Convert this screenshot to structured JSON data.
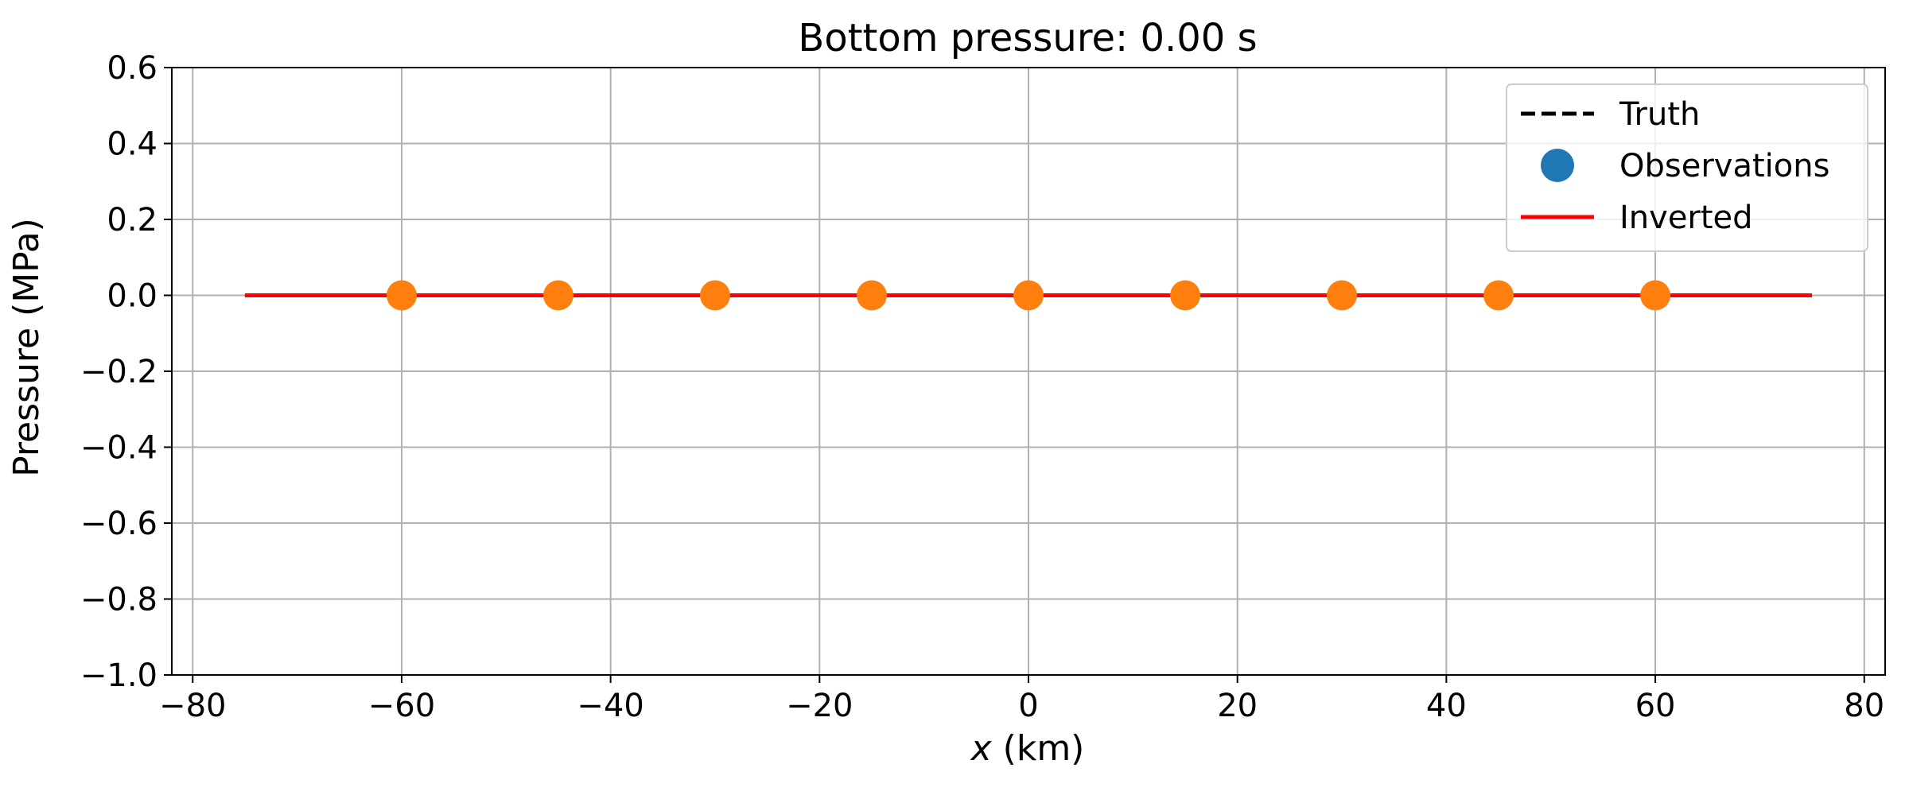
{
  "chart_data": {
    "type": "line",
    "title": "Bottom pressure:  0.00 s",
    "xlabel_var": "x",
    "xlabel_unit": " (km)",
    "ylabel": "Pressure (MPa)",
    "xlim": [
      -82,
      82
    ],
    "ylim": [
      -1.0,
      0.6
    ],
    "xticks": [
      -80,
      -60,
      -40,
      -20,
      0,
      20,
      40,
      60,
      80
    ],
    "yticks": [
      -1.0,
      -0.8,
      -0.6,
      -0.4,
      -0.2,
      0.0,
      0.2,
      0.4,
      0.6
    ],
    "grid": true,
    "legend_position": "top-right",
    "series": [
      {
        "name": "Truth",
        "kind": "line",
        "style": "dashed",
        "color": "#000000",
        "x": [
          -75,
          75
        ],
        "y": [
          0.0,
          0.0
        ]
      },
      {
        "name": "Observations",
        "kind": "scatter",
        "color": "#1f77b4",
        "x": [],
        "y": []
      },
      {
        "name": "Inverted",
        "kind": "line",
        "style": "solid",
        "color": "#ff0000",
        "x": [
          -75,
          75
        ],
        "y": [
          0.0,
          0.0
        ]
      },
      {
        "name": "",
        "kind": "scatter",
        "color": "#ff7f0e",
        "x": [
          -60,
          -45,
          -30,
          -15,
          0,
          15,
          30,
          45,
          60
        ],
        "y": [
          0.0,
          0.0,
          0.0,
          0.0,
          0.0,
          0.0,
          0.0,
          0.0,
          0.0
        ]
      }
    ]
  }
}
